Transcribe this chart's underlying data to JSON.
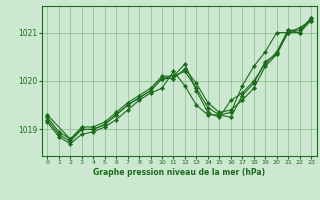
{
  "title": "Graphe pression niveau de la mer (hPa)",
  "bg_color": "#cce8d0",
  "grid_color": "#88bb88",
  "line_color": "#1a6b1a",
  "xlim": [
    -0.5,
    23.5
  ],
  "ylim": [
    1018.45,
    1021.55
  ],
  "yticks": [
    1019,
    1020,
    1021
  ],
  "xticks": [
    0,
    1,
    2,
    3,
    4,
    5,
    6,
    7,
    8,
    9,
    10,
    11,
    12,
    13,
    14,
    15,
    16,
    17,
    18,
    19,
    20,
    21,
    22,
    23
  ],
  "series1": {
    "x": [
      0,
      1,
      2,
      3,
      4,
      5,
      6,
      7,
      8,
      9,
      10,
      11,
      12,
      13,
      14,
      15,
      16,
      17,
      18,
      19,
      20,
      21,
      22,
      23
    ],
    "y": [
      1019.2,
      1018.9,
      1018.75,
      1019.0,
      1019.0,
      1019.1,
      1019.3,
      1019.5,
      1019.65,
      1019.8,
      1020.05,
      1020.05,
      1020.25,
      1019.95,
      1019.55,
      1019.35,
      1019.4,
      1019.6,
      1019.85,
      1020.3,
      1020.55,
      1021.0,
      1021.0,
      1021.25
    ]
  },
  "series2": {
    "x": [
      0,
      1,
      2,
      3,
      4,
      5,
      6,
      7,
      8,
      9,
      10,
      11,
      12,
      13,
      14,
      15,
      16,
      17,
      18,
      19,
      20,
      21,
      22,
      23
    ],
    "y": [
      1019.15,
      1018.85,
      1018.7,
      1018.9,
      1018.95,
      1019.05,
      1019.2,
      1019.4,
      1019.6,
      1019.75,
      1019.85,
      1020.2,
      1019.9,
      1019.5,
      1019.3,
      1019.3,
      1019.35,
      1019.9,
      1020.3,
      1020.6,
      1021.0,
      1021.0,
      1021.1,
      1021.25
    ]
  },
  "series3": {
    "x": [
      0,
      1,
      2,
      3,
      4,
      5,
      6,
      7,
      8,
      9,
      10,
      11,
      12,
      13,
      14,
      15,
      16,
      17,
      18,
      19,
      20,
      21,
      22,
      23
    ],
    "y": [
      1019.25,
      1018.95,
      1018.8,
      1019.05,
      1019.05,
      1019.15,
      1019.35,
      1019.55,
      1019.7,
      1019.85,
      1020.1,
      1020.1,
      1020.35,
      1019.8,
      1019.35,
      1019.25,
      1019.6,
      1019.75,
      1020.0,
      1020.35,
      1020.6,
      1021.05,
      1021.05,
      1021.3
    ]
  },
  "series4": {
    "x": [
      0,
      2,
      3,
      4,
      5,
      6,
      7,
      8,
      9,
      10,
      11,
      12,
      13,
      14,
      15,
      16,
      17,
      18,
      19,
      20,
      21,
      22,
      23
    ],
    "y": [
      1019.3,
      1018.8,
      1019.0,
      1019.0,
      1019.1,
      1019.3,
      1019.5,
      1019.65,
      1019.8,
      1020.05,
      1020.1,
      1020.2,
      1019.85,
      1019.45,
      1019.3,
      1019.25,
      1019.7,
      1019.95,
      1020.4,
      1020.55,
      1021.05,
      1021.0,
      1021.3
    ]
  }
}
